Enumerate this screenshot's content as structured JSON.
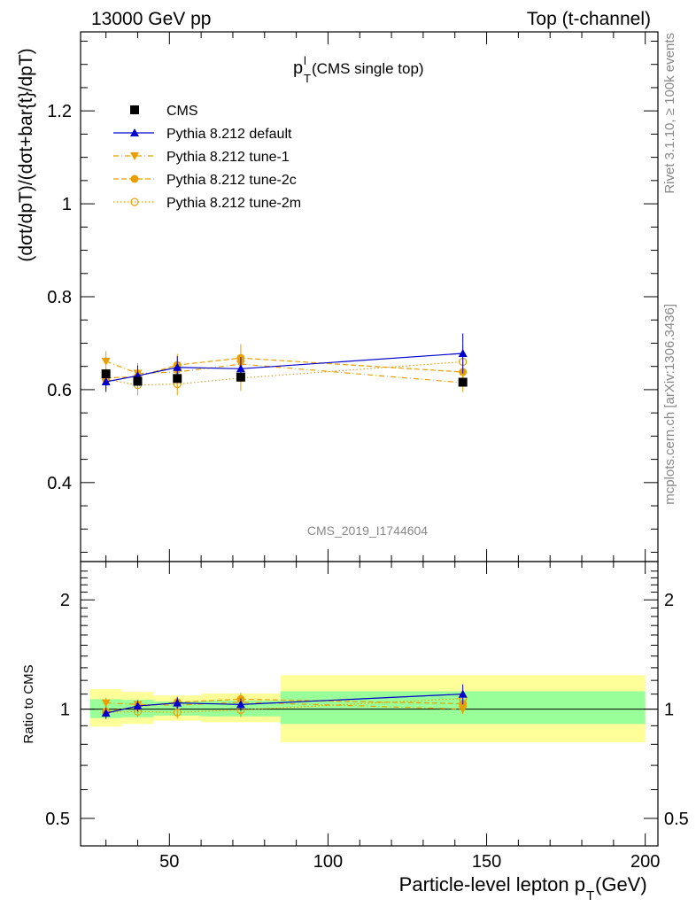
{
  "header": {
    "left": "13000 GeV pp",
    "right": "Top (t-channel)"
  },
  "side_text": {
    "rivet": "Rivet 3.1.10, ≥ 100k events",
    "mcplots": "mcplots.cern.ch [arXiv:1306.3436]"
  },
  "colors": {
    "cms": "#000000",
    "default": "#0000cc",
    "tune": "#e8a000",
    "band_inner": "#99ff99",
    "band_outer": "#ffff99",
    "watermark": "#888888"
  },
  "chart_data": [
    {
      "id": "main",
      "type": "scatter",
      "title": {
        "main": "p",
        "sup": "l",
        "sub": "T",
        "suffix": " (CMS single top)"
      },
      "ylabel": "(dσt/dpT)/(dσt+bar{t}/dpT)",
      "watermark": "CMS_2019_I1744604",
      "xlim": [
        22,
        204
      ],
      "ylim": [
        0.23,
        1.37
      ],
      "yticks": [
        0.4,
        0.6,
        0.8,
        1,
        1.2
      ],
      "ytick_labels": [
        "0.4",
        "0.6",
        "0.8",
        "1",
        "1.2"
      ],
      "legend": [
        {
          "label": "CMS",
          "key": "cms"
        },
        {
          "label": "Pythia 8.212 default",
          "key": "default"
        },
        {
          "label": "Pythia 8.212 tune-1",
          "key": "tune1"
        },
        {
          "label": "Pythia 8.212 tune-2c",
          "key": "tune2c"
        },
        {
          "label": "Pythia 8.212 tune-2m",
          "key": "tune2m"
        }
      ],
      "series": [
        {
          "name": "CMS",
          "key": "cms",
          "marker": "square",
          "x": [
            30,
            40,
            52.5,
            72.5,
            142.5
          ],
          "y": [
            0.634,
            0.618,
            0.624,
            0.627,
            0.616
          ],
          "xerr": [
            0,
            0,
            0,
            0,
            0
          ]
        },
        {
          "name": "Pythia 8.212 default",
          "key": "default",
          "marker": "triangle-up",
          "line": "solid",
          "x": [
            30,
            40,
            52.5,
            72.5,
            142.5
          ],
          "y": [
            0.617,
            0.63,
            0.648,
            0.645,
            0.678
          ],
          "yerr": [
            0.022,
            0.022,
            0.024,
            0.025,
            0.043
          ]
        },
        {
          "name": "Pythia 8.212 tune-1",
          "key": "tune1",
          "marker": "triangle-down",
          "line": "dashdot",
          "x": [
            30,
            40,
            52.5,
            72.5,
            142.5
          ],
          "y": [
            0.661,
            0.635,
            0.638,
            0.655,
            0.615
          ],
          "yerr": [
            0.022,
            0.022,
            0.024,
            0.025,
            0.02
          ]
        },
        {
          "name": "Pythia 8.212 tune-2c",
          "key": "tune2c",
          "marker": "circle",
          "line": "dashed",
          "x": [
            30,
            40,
            52.5,
            72.5,
            142.5
          ],
          "y": [
            0.625,
            0.628,
            0.653,
            0.668,
            0.638
          ],
          "yerr": [
            0.022,
            0.022,
            0.024,
            0.03,
            0.03
          ]
        },
        {
          "name": "Pythia 8.212 tune-2m",
          "key": "tune2m",
          "marker": "circle-open",
          "line": "dotted",
          "x": [
            30,
            40,
            52.5,
            72.5,
            142.5
          ],
          "y": [
            0.622,
            0.61,
            0.612,
            0.625,
            0.66
          ],
          "yerr": [
            0.022,
            0.022,
            0.024,
            0.028,
            0.035
          ]
        }
      ]
    },
    {
      "id": "ratio",
      "type": "scatter",
      "ylabel": "Ratio to CMS",
      "xlabel": "Particle-level lepton p_T (GeV)",
      "xlabel_parts": {
        "pre": "Particle-level lepton p",
        "sub": "T",
        "post": " (GeV)"
      },
      "xlim": [
        22,
        204
      ],
      "ylim": [
        0.42,
        2.55
      ],
      "log_y": true,
      "yticks": [
        0.5,
        1,
        2
      ],
      "ytick_labels": [
        "0.5",
        "1",
        "2"
      ],
      "xticks": [
        50,
        100,
        150,
        200
      ],
      "xtick_labels": [
        "50",
        "100",
        "150",
        "200"
      ],
      "bands": [
        {
          "xlo": 25,
          "xhi": 35,
          "inner": [
            0.945,
            1.065
          ],
          "outer": [
            0.895,
            1.135
          ]
        },
        {
          "xlo": 35,
          "xhi": 45,
          "inner": [
            0.95,
            1.06
          ],
          "outer": [
            0.91,
            1.115
          ]
        },
        {
          "xlo": 45,
          "xhi": 60,
          "inner": [
            0.96,
            1.05
          ],
          "outer": [
            0.93,
            1.09
          ]
        },
        {
          "xlo": 60,
          "xhi": 85,
          "inner": [
            0.955,
            1.055
          ],
          "outer": [
            0.92,
            1.105
          ]
        },
        {
          "xlo": 85,
          "xhi": 200,
          "inner": [
            0.91,
            1.12
          ],
          "outer": [
            0.81,
            1.24
          ]
        }
      ],
      "series": [
        {
          "name": "Pythia 8.212 default",
          "key": "default",
          "marker": "triangle-up",
          "line": "solid",
          "x": [
            30,
            40,
            52.5,
            72.5,
            142.5
          ],
          "y": [
            0.975,
            1.02,
            1.04,
            1.03,
            1.1
          ],
          "yerr": [
            0.035,
            0.035,
            0.038,
            0.04,
            0.07
          ]
        },
        {
          "name": "Pythia 8.212 tune-1",
          "key": "tune1",
          "marker": "triangle-down",
          "line": "dashdot",
          "x": [
            30,
            40,
            52.5,
            72.5,
            142.5
          ],
          "y": [
            1.04,
            1.03,
            1.025,
            1.045,
            1.0
          ],
          "yerr": [
            0.035,
            0.035,
            0.038,
            0.04,
            0.03
          ]
        },
        {
          "name": "Pythia 8.212 tune-2c",
          "key": "tune2c",
          "marker": "circle",
          "line": "dashed",
          "x": [
            30,
            40,
            52.5,
            72.5,
            142.5
          ],
          "y": [
            0.985,
            1.015,
            1.045,
            1.065,
            1.035
          ],
          "yerr": [
            0.035,
            0.035,
            0.038,
            0.045,
            0.05
          ]
        },
        {
          "name": "Pythia 8.212 tune-2m",
          "key": "tune2m",
          "marker": "circle-open",
          "line": "dotted",
          "x": [
            30,
            40,
            52.5,
            72.5,
            142.5
          ],
          "y": [
            0.98,
            0.985,
            0.98,
            0.995,
            1.07
          ],
          "yerr": [
            0.035,
            0.035,
            0.038,
            0.045,
            0.055
          ]
        }
      ]
    }
  ]
}
